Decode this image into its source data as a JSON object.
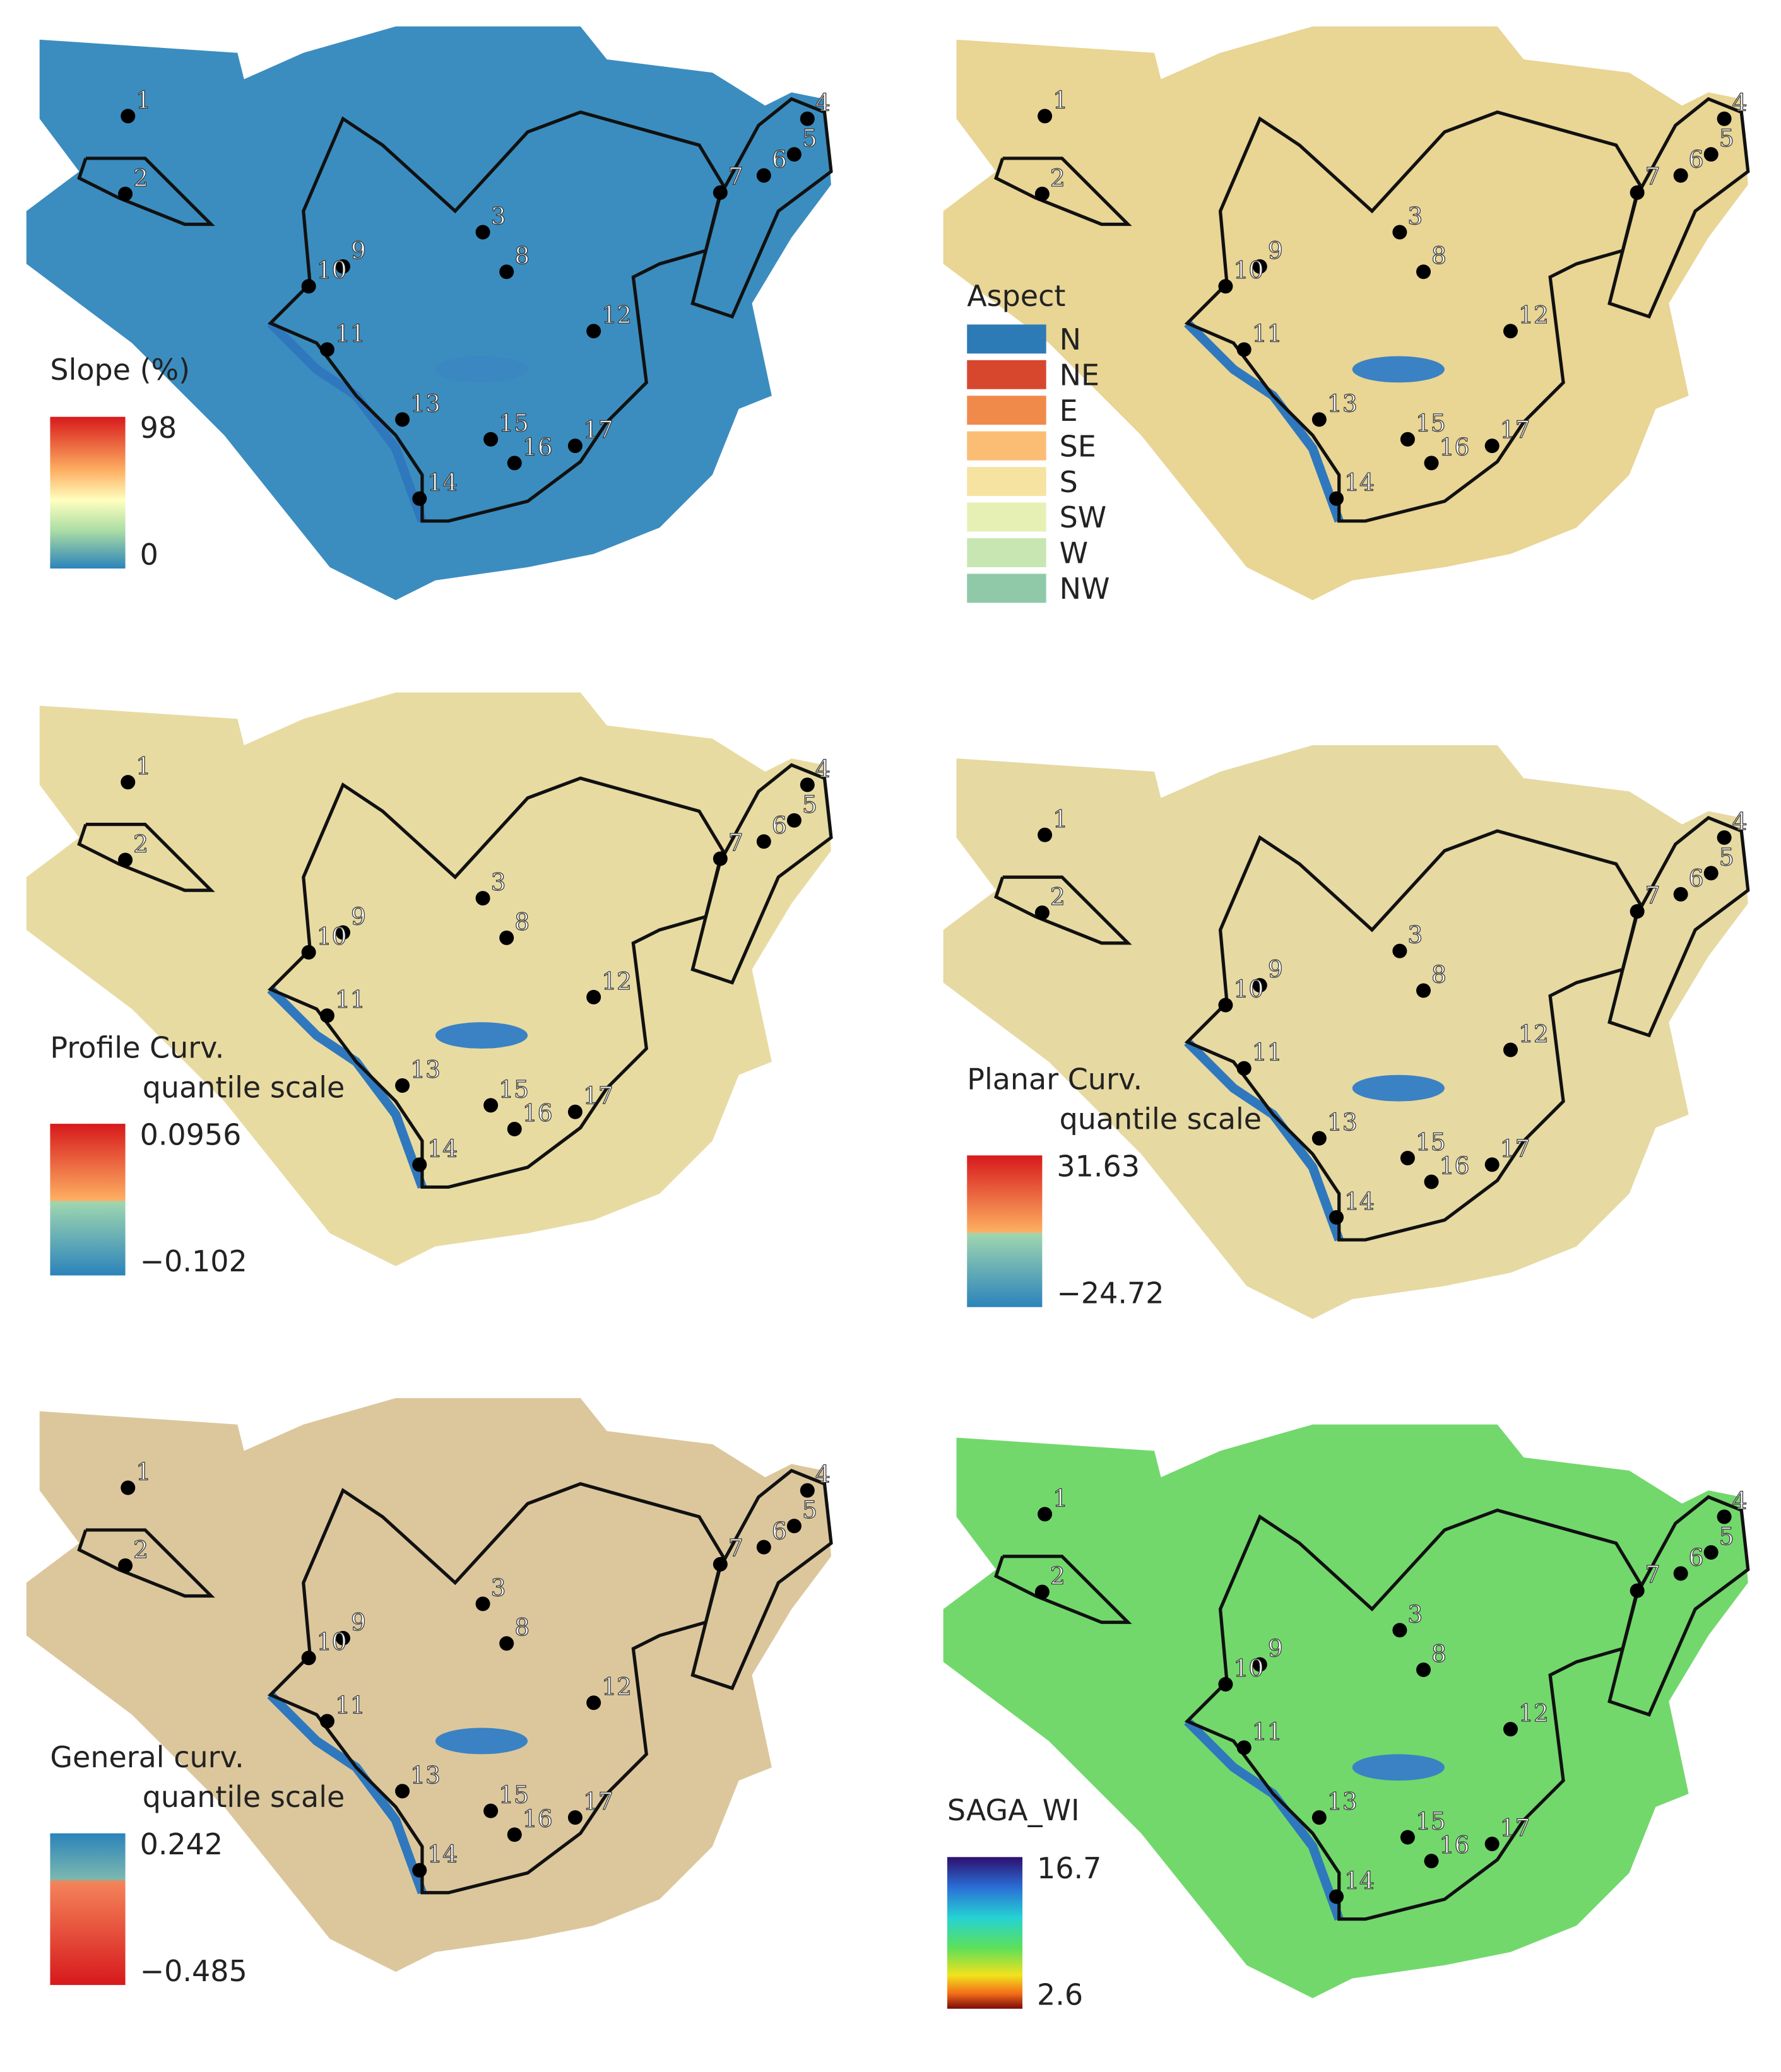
{
  "panels": [
    {
      "legend": {
        "title": "Slope (%)",
        "labels": [
          "98",
          "0"
        ]
      }
    },
    {
      "legend": {
        "title": "Aspect",
        "labels": [
          "N",
          "NE",
          "E",
          "SE",
          "S",
          "SW",
          "W",
          "NW"
        ],
        "colors": [
          "#2c7bb6",
          "#d7472e",
          "#f08a4b",
          "#fbbd74",
          "#f6e3a1",
          "#e6f0b4",
          "#c8e6b2",
          "#8fc9a8"
        ]
      }
    },
    {
      "legend": {
        "title": "Profile Curv.",
        "subtitle": "quantile scale",
        "labels": [
          "0.0956",
          "−0.102"
        ]
      }
    },
    {
      "legend": {
        "title": "Planar Curv.",
        "subtitle": "quantile scale",
        "labels": [
          "31.63",
          "−24.72"
        ]
      }
    },
    {
      "legend": {
        "title": "General curv.",
        "subtitle": "quantile scale",
        "labels": [
          "0.242",
          "−0.485"
        ]
      }
    },
    {
      "legend": {
        "title": "SAGA_WI",
        "labels": [
          "16.7",
          "2.6"
        ]
      }
    }
  ],
  "points": [
    "1",
    "2",
    "3",
    "4",
    "5",
    "6",
    "7",
    "8",
    "9",
    "10",
    "11",
    "12",
    "13",
    "14",
    "15",
    "16",
    "17"
  ]
}
